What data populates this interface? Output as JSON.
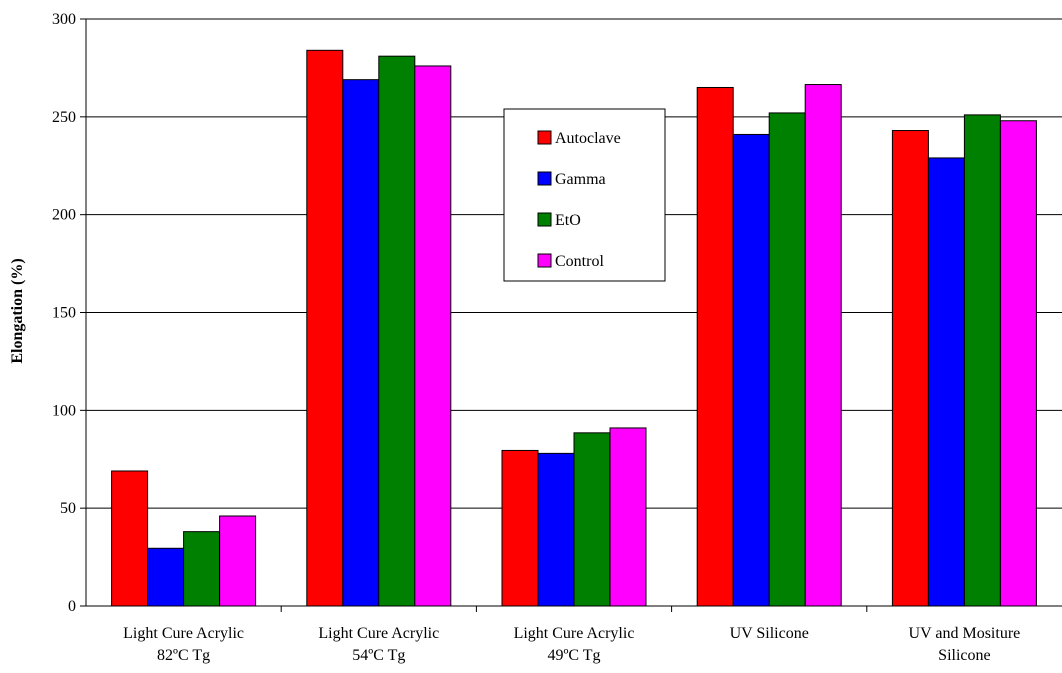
{
  "chart_data": {
    "type": "bar",
    "title": "",
    "xlabel": "",
    "ylabel": "Elongation (%)",
    "ylim": [
      0,
      300
    ],
    "yticks": [
      0,
      50,
      100,
      150,
      200,
      250,
      300
    ],
    "grid": true,
    "legend_position": "center-top",
    "categories": [
      [
        "Light Cure Acrylic",
        "82ºC Tg"
      ],
      [
        "Light Cure Acrylic",
        "54ºC Tg"
      ],
      [
        "Light Cure Acrylic",
        "49ºC Tg"
      ],
      [
        "UV Silicone"
      ],
      [
        "UV and Mositure",
        "Silicone"
      ]
    ],
    "series": [
      {
        "name": "Autoclave",
        "color": "#ff0000",
        "values": [
          69,
          284,
          79.5,
          265,
          243
        ]
      },
      {
        "name": "Gamma",
        "color": "#0000ff",
        "values": [
          29.5,
          269,
          78,
          241,
          229
        ]
      },
      {
        "name": "EtO",
        "color": "#008000",
        "values": [
          38,
          281,
          88.5,
          252,
          251
        ]
      },
      {
        "name": "Control",
        "color": "#ff00ff",
        "values": [
          46,
          276,
          91,
          266.5,
          248
        ]
      }
    ]
  }
}
